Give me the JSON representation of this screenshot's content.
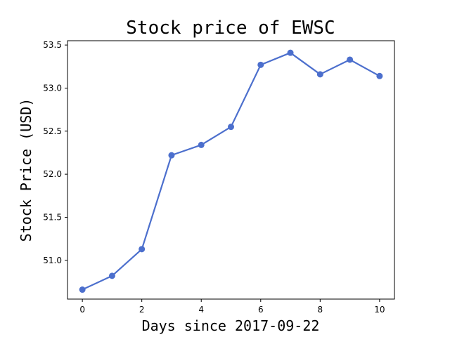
{
  "chart_data": {
    "type": "line",
    "title": "Stock price of EWSC",
    "xlabel": "Days since 2017-09-22",
    "ylabel": "Stock Price (USD)",
    "x": [
      0,
      1,
      2,
      3,
      4,
      5,
      6,
      7,
      8,
      9,
      10
    ],
    "series": [
      {
        "values": [
          50.66,
          50.82,
          51.13,
          52.22,
          52.34,
          52.55,
          53.27,
          53.41,
          53.16,
          53.33,
          53.14
        ],
        "color": "#4c6fcd"
      }
    ],
    "xlim": [
      -0.5,
      10.5
    ],
    "ylim": [
      50.55,
      53.55
    ],
    "xticks": [
      0,
      2,
      4,
      6,
      8,
      10
    ],
    "yticks": [
      51.0,
      51.5,
      52.0,
      52.5,
      53.0,
      53.5
    ],
    "ytick_format": "0.0",
    "grid": false
  }
}
